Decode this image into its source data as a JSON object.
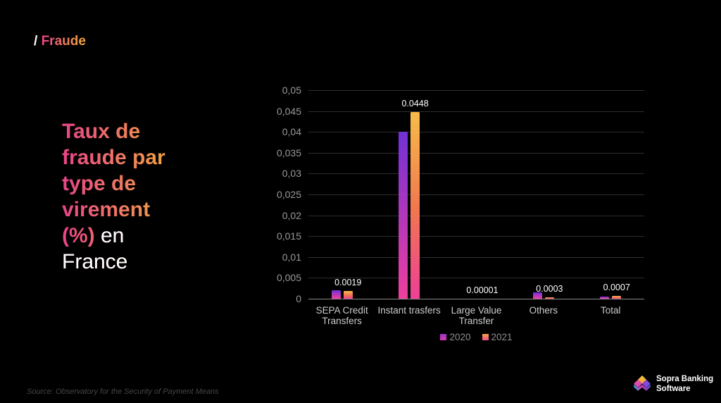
{
  "header": {
    "slash": "/",
    "label": "Fraude"
  },
  "title": {
    "gradient_text": "Taux de fraude par type de virement (%)",
    "plain_text": " en France"
  },
  "chart_data": {
    "type": "bar",
    "title": "",
    "categories": [
      "SEPA Credit Transfers",
      "Instant trasfers",
      "Large Value Transfer",
      "Others",
      "Total"
    ],
    "series": [
      {
        "name": "2020",
        "values": [
          0.0021,
          0.04,
          1e-05,
          0.0016,
          0.0005
        ]
      },
      {
        "name": "2021",
        "values": [
          0.0019,
          0.0448,
          1e-05,
          0.0003,
          0.0007
        ]
      }
    ],
    "data_labels_series": "2021",
    "data_labels": [
      "0.0019",
      "0.0448",
      "0.00001",
      "0.0003",
      "0.0007"
    ],
    "y_ticks": [
      "0,05",
      "0,045",
      "0,04",
      "0,035",
      "0,03",
      "0,025",
      "0,02",
      "0,015",
      "0,01",
      "0,005",
      "0"
    ],
    "ylim": [
      0,
      0.05
    ],
    "grid": true,
    "legend": {
      "position": "bottom",
      "entries": [
        "2020",
        "2021"
      ]
    }
  },
  "colors": {
    "background": "#000000",
    "series_2020_gradient_top": "#7130d6",
    "series_2020_gradient_bottom": "#ee3f9f",
    "series_2021_gradient_top": "#f7bc49",
    "series_2021_gradient_mid": "#f1774f",
    "series_2021_gradient_bottom": "#ee3f97",
    "title_gradient_start": "#ea4489",
    "title_gradient_end": "#f2ab39",
    "axis_text": "#999999",
    "category_text": "#cccccc",
    "legend_text": "#8f8f8f",
    "data_label_text": "#ffffff",
    "gridline": "#2e2e2e",
    "axis_line": "#8a8a8a"
  },
  "source": "Source: Observatory for the Security of Payment Means",
  "logo": {
    "line1": "Sopra Banking",
    "line2": "Software"
  }
}
